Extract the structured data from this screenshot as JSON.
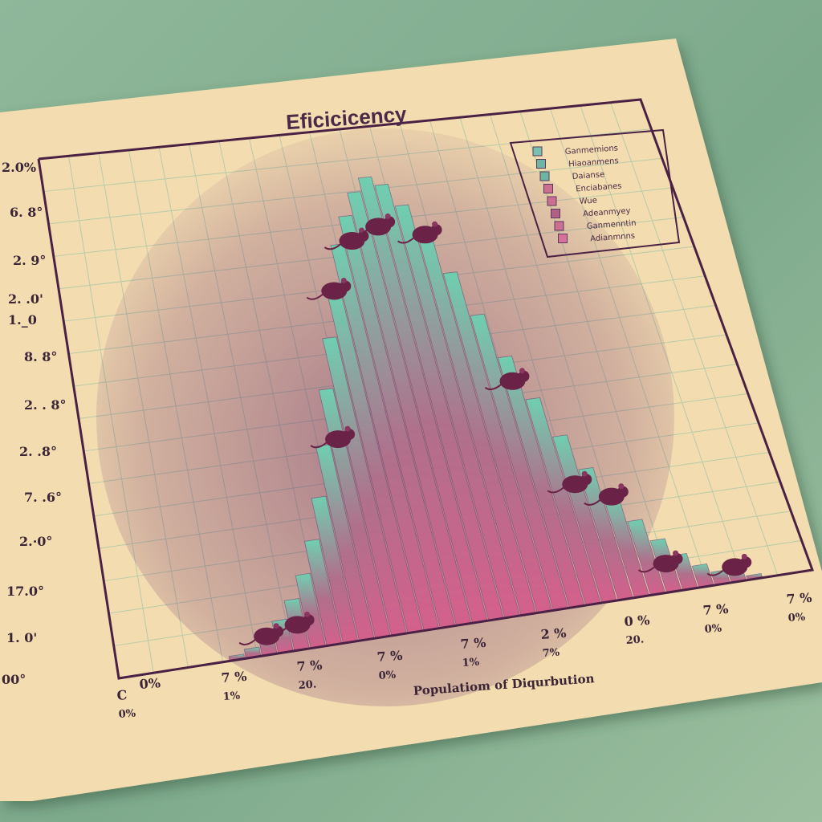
{
  "chart_data": {
    "type": "bar",
    "title": "Eficicicency",
    "xlabel": "Populatiom of Diqurbution",
    "ylabel": "",
    "y_tick_labels": [
      "00°",
      "1. 0'",
      "17.0°",
      "2.·0°",
      "7. .6°",
      "2. .8°",
      "2. . 8°",
      "8. 8°",
      "1._0",
      "2. .0'",
      "2. 9°",
      "6. 8°",
      "2.0%"
    ],
    "x_tick_labels": [
      {
        "top": "C",
        "bottom": "0%"
      },
      {
        "top": "0%",
        "bottom": ""
      },
      {
        "top": "7 %",
        "bottom": "1%"
      },
      {
        "top": "7 %",
        "bottom": "20."
      },
      {
        "top": "7 %",
        "bottom": "0%"
      },
      {
        "top": "7 %",
        "bottom": "1%"
      },
      {
        "top": "2 %",
        "bottom": "7%"
      },
      {
        "top": "0 %",
        "bottom": "20."
      },
      {
        "top": "7 %",
        "bottom": "0%"
      },
      {
        "top": "7 %",
        "bottom": "0%"
      }
    ],
    "values": [
      0.01,
      0.02,
      0.04,
      0.07,
      0.11,
      0.16,
      0.23,
      0.32,
      0.43,
      0.55,
      0.66,
      0.76,
      0.86,
      0.92,
      0.97,
      1.0,
      0.98,
      0.93,
      0.86,
      0.77,
      0.67,
      0.57,
      0.47,
      0.38,
      0.3,
      0.23,
      0.17,
      0.12,
      0.08,
      0.05,
      0.03,
      0.02,
      0.01
    ],
    "ylim": [
      0,
      1
    ],
    "grid": true,
    "legend_position": "top-right",
    "legend": [
      {
        "label": "Ganmemions",
        "color": "#7ac0b0"
      },
      {
        "label": "Hiaoanmens",
        "color": "#6fb5a6"
      },
      {
        "label": "Daianse",
        "color": "#6fb5a6"
      },
      {
        "label": "Enciabanes",
        "color": "#cc6f93"
      },
      {
        "label": "Wue",
        "color": "#cc6f93"
      },
      {
        "label": "Adeanmyey",
        "color": "#b06184"
      },
      {
        "label": "Ganmenntin",
        "color": "#cc6f93"
      },
      {
        "label": "Adianmnns",
        "color": "#d4729a"
      }
    ]
  },
  "colors": {
    "paper": "#f3ddb0",
    "grid": "#b9c9a8",
    "frame": "#4a2144",
    "bar_top": "#6fcfb0",
    "bar_bottom": "#d4608c",
    "mouse": "#6b2247"
  }
}
